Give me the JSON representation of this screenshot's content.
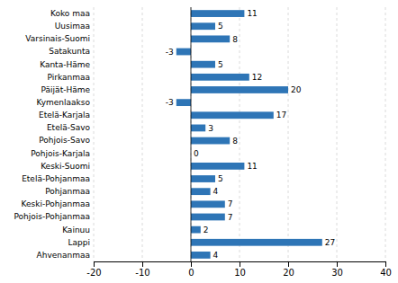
{
  "chart_data": {
    "type": "bar",
    "orientation": "horizontal",
    "categories": [
      "Koko maa",
      "Uusimaa",
      "Varsinais-Suomi",
      "Satakunta",
      "Kanta-Häme",
      "Pirkanmaa",
      "Päijät-Häme",
      "Kymenlaakso",
      "Etelä-Karjala",
      "Etelä-Savo",
      "Pohjois-Savo",
      "Pohjois-Karjala",
      "Keski-Suomi",
      "Etelä-Pohjanmaa",
      "Pohjanmaa",
      "Keski-Pohjanmaa",
      "Pohjois-Pohjanmaa",
      "Kainuu",
      "Lappi",
      "Ahvenanmaa"
    ],
    "values": [
      11,
      5,
      8,
      -3,
      5,
      12,
      20,
      -3,
      17,
      3,
      8,
      0,
      11,
      5,
      4,
      7,
      7,
      2,
      27,
      4
    ],
    "color": "#2E75B6",
    "xlim": [
      -20,
      40
    ],
    "xticks": [
      -20,
      -10,
      0,
      10,
      20,
      30,
      40
    ],
    "grid": true,
    "data_labels": true
  }
}
